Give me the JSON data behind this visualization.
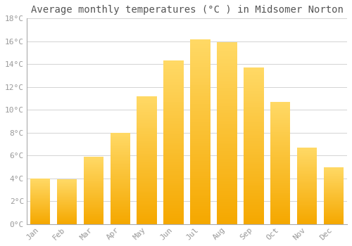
{
  "title": "Average monthly temperatures (°C ) in Midsomer Norton",
  "months": [
    "Jan",
    "Feb",
    "Mar",
    "Apr",
    "May",
    "Jun",
    "Jul",
    "Aug",
    "Sep",
    "Oct",
    "Nov",
    "Dec"
  ],
  "values": [
    4.0,
    3.9,
    5.9,
    8.0,
    11.2,
    14.3,
    16.2,
    15.9,
    13.7,
    10.7,
    6.7,
    5.0
  ],
  "bar_color_top": "#FFD966",
  "bar_color_bottom": "#F5A800",
  "background_color": "#FFFFFF",
  "grid_color": "#CCCCCC",
  "text_color": "#999999",
  "ylim": [
    0,
    18
  ],
  "yticks": [
    0,
    2,
    4,
    6,
    8,
    10,
    12,
    14,
    16,
    18
  ],
  "ytick_labels": [
    "0°C",
    "2°C",
    "4°C",
    "6°C",
    "8°C",
    "10°C",
    "12°C",
    "14°C",
    "16°C",
    "18°C"
  ],
  "title_fontsize": 10,
  "tick_fontsize": 8,
  "bar_width": 0.75,
  "gradient_steps": 100,
  "spine_color": "#AAAAAA"
}
